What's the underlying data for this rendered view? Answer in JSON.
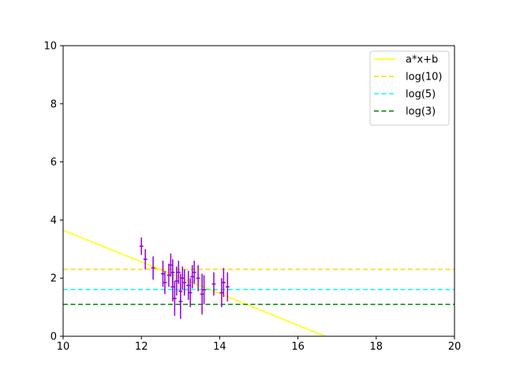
{
  "chart_data": {
    "type": "scatter",
    "title": "",
    "xlabel": "",
    "ylabel": "",
    "xlim": [
      10,
      20
    ],
    "ylim": [
      0,
      10
    ],
    "xticks": [
      "10",
      "12",
      "14",
      "16",
      "18",
      "20"
    ],
    "yticks": [
      "0",
      "2",
      "4",
      "6",
      "8",
      "10"
    ],
    "grid": false,
    "legend_position": "top-right",
    "colors": {
      "points": "#9400d3",
      "fit": "#ffff00",
      "log10": "#ffd700",
      "log5": "#00ffff",
      "log3": "#008000"
    },
    "points": [
      {
        "x": 12.0,
        "y": 3.1,
        "yerr": 0.3,
        "xerr": 0.05
      },
      {
        "x": 12.1,
        "y": 2.65,
        "yerr": 0.35,
        "xerr": 0.05
      },
      {
        "x": 12.3,
        "y": 2.35,
        "yerr": 0.4,
        "xerr": 0.05
      },
      {
        "x": 12.55,
        "y": 2.15,
        "yerr": 0.45,
        "xerr": 0.05
      },
      {
        "x": 12.6,
        "y": 1.85,
        "yerr": 0.4,
        "xerr": 0.05
      },
      {
        "x": 12.7,
        "y": 2.1,
        "yerr": 0.4,
        "xerr": 0.05
      },
      {
        "x": 12.75,
        "y": 2.45,
        "yerr": 0.4,
        "xerr": 0.05
      },
      {
        "x": 12.8,
        "y": 2.2,
        "yerr": 0.45,
        "xerr": 0.05
      },
      {
        "x": 12.8,
        "y": 1.7,
        "yerr": 0.5,
        "xerr": 0.05
      },
      {
        "x": 12.85,
        "y": 1.3,
        "yerr": 0.6,
        "xerr": 0.05
      },
      {
        "x": 12.9,
        "y": 1.9,
        "yerr": 0.5,
        "xerr": 0.05
      },
      {
        "x": 12.95,
        "y": 2.2,
        "yerr": 0.4,
        "xerr": 0.05
      },
      {
        "x": 13.0,
        "y": 1.55,
        "yerr": 0.6,
        "xerr": 0.05
      },
      {
        "x": 13.0,
        "y": 1.2,
        "yerr": 0.6,
        "xerr": 0.05
      },
      {
        "x": 13.05,
        "y": 2.0,
        "yerr": 0.4,
        "xerr": 0.05
      },
      {
        "x": 13.1,
        "y": 1.85,
        "yerr": 0.45,
        "xerr": 0.05
      },
      {
        "x": 13.2,
        "y": 1.75,
        "yerr": 0.5,
        "xerr": 0.05
      },
      {
        "x": 13.25,
        "y": 1.5,
        "yerr": 0.5,
        "xerr": 0.05
      },
      {
        "x": 13.3,
        "y": 2.05,
        "yerr": 0.4,
        "xerr": 0.05
      },
      {
        "x": 13.35,
        "y": 2.2,
        "yerr": 0.4,
        "xerr": 0.05
      },
      {
        "x": 13.45,
        "y": 2.0,
        "yerr": 0.45,
        "xerr": 0.05
      },
      {
        "x": 13.55,
        "y": 1.45,
        "yerr": 0.7,
        "xerr": 0.05
      },
      {
        "x": 13.6,
        "y": 1.6,
        "yerr": 0.5,
        "xerr": 0.05
      },
      {
        "x": 13.85,
        "y": 1.8,
        "yerr": 0.4,
        "xerr": 0.05
      },
      {
        "x": 14.05,
        "y": 1.5,
        "yerr": 0.5,
        "xerr": 0.05
      },
      {
        "x": 14.1,
        "y": 1.85,
        "yerr": 0.5,
        "xerr": 0.05
      },
      {
        "x": 14.2,
        "y": 1.7,
        "yerr": 0.5,
        "xerr": 0.05
      }
    ],
    "lines": [
      {
        "name": "a*x+b",
        "kind": "linear",
        "slope": -0.545,
        "intercept": 9.1,
        "style": "solid",
        "color_key": "fit"
      },
      {
        "name": "log(10)",
        "kind": "hline",
        "y": 2.303,
        "style": "dashed",
        "color_key": "log10"
      },
      {
        "name": "log(5)",
        "kind": "hline",
        "y": 1.609,
        "style": "dashed",
        "color_key": "log5"
      },
      {
        "name": "log(3)",
        "kind": "hline",
        "y": 1.099,
        "style": "dashed",
        "color_key": "log3"
      }
    ]
  }
}
